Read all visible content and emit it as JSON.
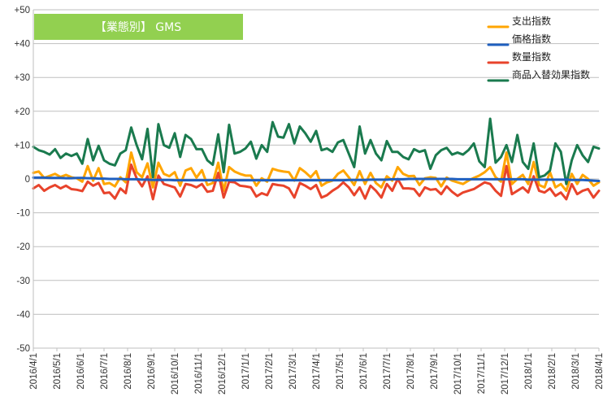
{
  "chart_data": {
    "type": "line",
    "title": "【業態別】 GMS",
    "title_bg_color": "#92d050",
    "y_range": [
      -50,
      50
    ],
    "y_ticks": [
      "+50",
      "+40",
      "+30",
      "+20",
      "+10",
      "0",
      "-10",
      "-20",
      "-30",
      "-40",
      "-50"
    ],
    "x_range": [
      "2016/4/1",
      "2018/4/1"
    ],
    "x_ticks": [
      "2016/4/1",
      "2016/5/1",
      "2016/6/1",
      "2016/7/1",
      "2016/8/1",
      "2016/9/1",
      "2016/10/1",
      "2016/11/1",
      "2016/12/1",
      "2017/1/1",
      "2017/2/1",
      "2017/3/1",
      "2017/4/1",
      "2017/5/1",
      "2017/6/1",
      "2017/7/1",
      "2017/8/1",
      "2017/9/1",
      "2017/10/1",
      "2017/11/1",
      "2017/12/1",
      "2018/1/1",
      "2018/2/1",
      "2018/3/1",
      "2018/4/1"
    ],
    "grid": "horizontal",
    "legend_position": "top-right",
    "series": [
      {
        "name": "支出指数",
        "color": "#ffa500",
        "values": [
          1.8,
          2.2,
          0.3,
          0.9,
          1.5,
          0.6,
          1.2,
          0.5,
          0.2,
          -0.8,
          3.8,
          -0.5,
          3.2,
          -1.5,
          -1.2,
          -2.2,
          0.5,
          -1.0,
          7.8,
          2.0,
          0.5,
          4.6,
          -2.5,
          4.8,
          1.5,
          0.8,
          2.0,
          -2.0,
          2.5,
          3.2,
          0.4,
          2.6,
          -1.8,
          -1.2,
          4.8,
          -3.5,
          3.5,
          2.2,
          1.5,
          1.0,
          1.0,
          -2.0,
          0.2,
          -0.8,
          3.0,
          2.5,
          2.2,
          2.0,
          -0.5,
          3.2,
          2.0,
          0.5,
          2.3,
          -2.0,
          -1.0,
          -0.5,
          1.5,
          2.5,
          0.5,
          -1.8,
          2.3,
          -1.5,
          1.8,
          -1.2,
          -2.5,
          0.8,
          -0.5,
          3.5,
          1.5,
          0.8,
          0.9,
          -1.8,
          0.2,
          0.5,
          0.3,
          -2.2,
          0.4,
          -0.5,
          -1.0,
          -1.5,
          -0.5,
          0.3,
          1.0,
          2.0,
          3.5,
          0.5,
          -0.8,
          7.8,
          -1.5,
          0.0,
          1.2,
          -1.5,
          5.0,
          -1.8,
          -2.5,
          2.0,
          -2.5,
          -1.5,
          -3.5,
          1.5,
          -1.5,
          1.2,
          0.0,
          -2.0,
          -1.0
        ]
      },
      {
        "name": "価格指数",
        "color": "#1f5fbf",
        "values": [
          0.4,
          0.4,
          0.4,
          0.3,
          0.3,
          0.3,
          0.2,
          0.2,
          0.3,
          0.3,
          0.2,
          0.2,
          0.1,
          0.1,
          0.0,
          0.0,
          0.0,
          -0.1,
          -0.1,
          -0.1,
          -0.2,
          -0.2,
          -0.3,
          -0.3,
          -0.3,
          -0.3,
          -0.4,
          -0.4,
          -0.4,
          -0.4,
          -0.4,
          -0.4,
          -0.4,
          -0.4,
          -0.4,
          -0.4,
          -0.4,
          -0.4,
          -0.4,
          -0.4,
          -0.4,
          -0.4,
          -0.4,
          -0.4,
          -0.4,
          -0.4,
          -0.4,
          -0.4,
          -0.4,
          -0.4,
          -0.4,
          -0.4,
          -0.4,
          -0.4,
          -0.4,
          -0.4,
          -0.4,
          -0.4,
          -0.3,
          -0.3,
          -0.3,
          -0.3,
          -0.2,
          -0.2,
          -0.2,
          -0.2,
          -0.1,
          -0.1,
          -0.1,
          0.0,
          0.0,
          0.0,
          0.0,
          0.0,
          0.0,
          0.0,
          0.0,
          0.0,
          -0.1,
          -0.1,
          -0.1,
          -0.1,
          -0.1,
          -0.1,
          -0.1,
          -0.1,
          -0.1,
          -0.1,
          -0.1,
          -0.1,
          -0.1,
          -0.2,
          -0.2,
          -0.2,
          -0.2,
          -0.2,
          -0.2,
          -0.2,
          -0.2,
          -0.3,
          -0.3,
          -0.3,
          -0.4,
          -0.5,
          -0.6
        ]
      },
      {
        "name": "数量指数",
        "color": "#e8432b",
        "values": [
          -2.8,
          -1.8,
          -3.5,
          -2.5,
          -1.8,
          -2.8,
          -2.0,
          -3.0,
          -3.2,
          -3.6,
          -0.8,
          -2.0,
          -1.2,
          -4.2,
          -4.0,
          -5.8,
          -2.8,
          -4.2,
          4.2,
          0.2,
          -2.2,
          0.8,
          -6.0,
          1.0,
          -1.5,
          -2.0,
          -2.5,
          -5.2,
          -1.5,
          -1.8,
          -2.5,
          -1.5,
          -3.8,
          -3.5,
          1.8,
          -5.5,
          -0.8,
          -1.0,
          -2.0,
          -2.2,
          -2.5,
          -5.2,
          -4.2,
          -4.8,
          -1.5,
          -1.8,
          -2.0,
          -2.8,
          -5.5,
          -1.2,
          -2.0,
          -3.0,
          -1.8,
          -5.5,
          -4.8,
          -3.5,
          -2.5,
          -1.0,
          -2.5,
          -4.8,
          -2.5,
          -5.8,
          -2.0,
          -3.5,
          -5.5,
          -1.5,
          -3.5,
          0.0,
          -2.8,
          -2.8,
          -3.0,
          -5.0,
          -2.5,
          -3.2,
          -3.0,
          -4.5,
          -2.2,
          -3.8,
          -5.0,
          -4.0,
          -3.5,
          -3.0,
          -2.0,
          -1.0,
          -1.5,
          -3.5,
          -5.0,
          3.8,
          -4.5,
          -3.5,
          -2.5,
          -4.0,
          0.8,
          -3.5,
          -4.0,
          -2.8,
          -5.0,
          -4.0,
          -6.0,
          -1.5,
          -4.5,
          -3.5,
          -3.0,
          -5.5,
          -3.5
        ]
      },
      {
        "name": "商品入替効果指数",
        "color": "#1a7a4e",
        "values": [
          9.5,
          8.5,
          8.0,
          7.2,
          8.8,
          6.2,
          7.5,
          6.8,
          7.5,
          4.5,
          11.8,
          5.5,
          9.8,
          5.5,
          4.5,
          4.0,
          7.5,
          8.5,
          15.2,
          10.0,
          5.8,
          14.8,
          0.5,
          16.2,
          10.0,
          9.2,
          13.5,
          6.5,
          13.0,
          11.8,
          8.8,
          8.8,
          5.5,
          4.2,
          13.2,
          2.0,
          16.0,
          7.5,
          8.0,
          9.0,
          11.0,
          6.0,
          10.0,
          8.0,
          16.8,
          12.5,
          12.2,
          16.2,
          10.5,
          15.5,
          13.5,
          11.0,
          14.2,
          8.5,
          9.0,
          8.0,
          10.8,
          11.5,
          7.5,
          3.5,
          15.5,
          7.5,
          11.5,
          7.5,
          5.5,
          11.2,
          8.0,
          8.0,
          6.5,
          5.8,
          8.8,
          8.0,
          8.5,
          3.0,
          7.0,
          8.5,
          9.2,
          7.2,
          7.8,
          7.2,
          8.5,
          10.5,
          5.2,
          3.5,
          17.8,
          4.8,
          6.5,
          10.0,
          5.0,
          13.0,
          5.0,
          3.0,
          10.5,
          0.5,
          1.0,
          2.5,
          10.5,
          8.0,
          -1.5,
          5.5,
          10.0,
          7.0,
          5.0,
          9.5,
          9.0
        ]
      }
    ]
  }
}
